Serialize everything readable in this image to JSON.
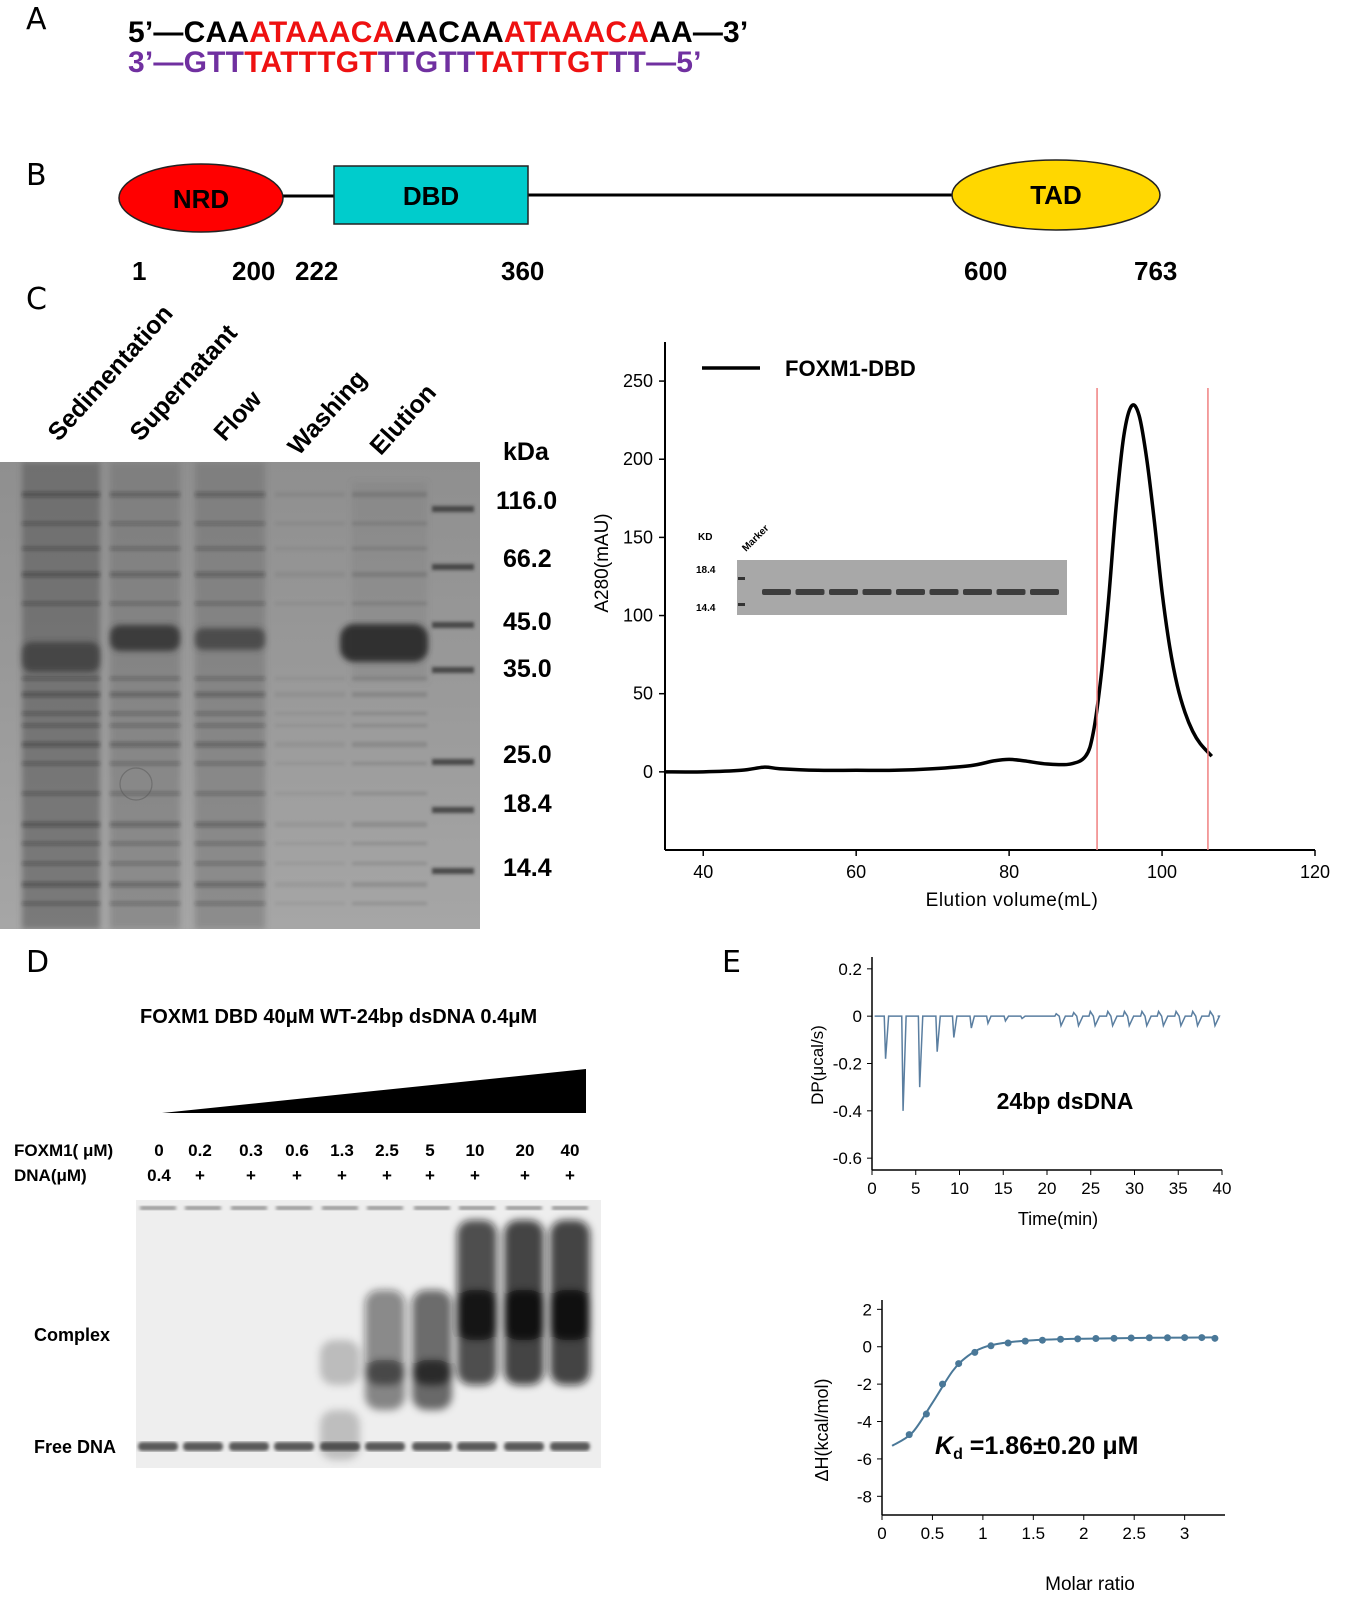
{
  "panels": {
    "a": "A",
    "b": "B",
    "c": "C",
    "d": "D",
    "e": "E"
  },
  "panel_a": {
    "top_strand": [
      {
        "t": "5’—",
        "c": "black"
      },
      {
        "t": "CAA",
        "c": "black"
      },
      {
        "t": "ATAAACA",
        "c": "red"
      },
      {
        "t": "AACAA",
        "c": "black"
      },
      {
        "t": "ATAAACA",
        "c": "red"
      },
      {
        "t": "AA",
        "c": "black"
      },
      {
        "t": "—3’",
        "c": "black"
      }
    ],
    "bottom_strand": [
      {
        "t": "3’—",
        "c": "purple"
      },
      {
        "t": "GTT",
        "c": "purple"
      },
      {
        "t": "TATTTGT",
        "c": "red"
      },
      {
        "t": "TTGTT",
        "c": "purple"
      },
      {
        "t": "TATTTGT",
        "c": "red"
      },
      {
        "t": "TT",
        "c": "purple"
      },
      {
        "t": "—5’",
        "c": "purple"
      }
    ]
  },
  "panel_b": {
    "domains": [
      {
        "label": "NRD",
        "color": "#ff0000"
      },
      {
        "label": "DBD",
        "color": "#00cccc"
      },
      {
        "label": "TAD",
        "color": "#ffd700"
      }
    ],
    "positions": [
      "1",
      "200",
      "222",
      "360",
      "600",
      "763"
    ]
  },
  "panel_c": {
    "lanes": [
      "Sedimentation",
      "Supernatant",
      "Flow",
      "Washing",
      "Elution"
    ],
    "kda_title": "kDa",
    "markers": [
      "116.0",
      "66.2",
      "45.0",
      "35.0",
      "25.0",
      "18.4",
      "14.4"
    ],
    "chart_data": {
      "type": "line",
      "legend": "FOXM1-DBD",
      "xlabel": "Elution volume(mL)",
      "ylabel": "A280(mAU)",
      "xlim": [
        35,
        120
      ],
      "ylim": [
        -50,
        275
      ],
      "x_ticks": [
        40,
        60,
        80,
        100,
        120
      ],
      "y_ticks": [
        0,
        50,
        100,
        150,
        200,
        250
      ],
      "vertical_lines": [
        91.5,
        106
      ],
      "x": [
        35,
        40,
        45,
        48,
        50,
        55,
        60,
        65,
        70,
        75,
        78,
        80,
        82,
        85,
        88,
        90,
        91,
        92,
        93,
        94,
        95,
        96,
        97,
        98,
        99,
        100,
        101,
        102,
        103,
        104,
        105,
        106.5
      ],
      "y": [
        0,
        0,
        1,
        3,
        2,
        1,
        1,
        1,
        2,
        4,
        7,
        8,
        7,
        5,
        5,
        10,
        25,
        60,
        110,
        170,
        215,
        234,
        228,
        200,
        160,
        115,
        80,
        55,
        38,
        26,
        18,
        10
      ],
      "inset": {
        "kd_label": "KD",
        "marker_label": "Marker",
        "bands": [
          "18.4",
          "14.4"
        ]
      }
    }
  },
  "panel_d": {
    "title": "FOXM1 DBD 40μM WT-24bp dsDNA 0.4μM",
    "foxm1_label": "FOXM1( μM)",
    "dna_label": "DNA(μM)",
    "foxm1_values": [
      "0",
      "0.2",
      "0.3",
      "0.6",
      "1.3",
      "2.5",
      "5",
      "10",
      "20",
      "40"
    ],
    "dna_values": [
      "0.4",
      "+",
      "+",
      "+",
      "+",
      "+",
      "+",
      "+",
      "+",
      "+"
    ],
    "complex_label": "Complex",
    "free_label": "Free DNA"
  },
  "panel_e": {
    "top": {
      "chart_data": {
        "type": "line",
        "title": "24bp dsDNA",
        "xlabel": "Time(min)",
        "ylabel": "DP(μcal/s)",
        "xlim": [
          0,
          40
        ],
        "ylim": [
          -0.65,
          0.25
        ],
        "x_ticks": [
          0,
          5,
          10,
          15,
          20,
          25,
          30,
          35,
          40
        ],
        "y_ticks": [
          0.2,
          0,
          -0.2,
          -0.4,
          -0.6
        ],
        "injection_times": [
          1.4,
          3.4,
          5.3,
          7.3,
          9.2,
          11.2,
          13.1,
          15.1,
          17.0,
          19.0,
          20.9,
          22.9,
          24.8,
          26.8,
          28.7,
          30.7,
          32.6,
          34.6,
          36.5,
          38.5
        ],
        "injection_peaks": [
          -0.18,
          -0.4,
          -0.3,
          -0.15,
          -0.09,
          -0.05,
          -0.03,
          -0.02,
          -0.01,
          0.0,
          0.01,
          0.015,
          0.02,
          0.02,
          0.02,
          0.02,
          0.02,
          0.02,
          0.02,
          0.02
        ]
      }
    },
    "bottom": {
      "chart_data": {
        "type": "scatter",
        "xlabel": "Molar ratio",
        "ylabel": "ΔH(kcal/mol)",
        "xlim": [
          0,
          3.4
        ],
        "ylim": [
          -9,
          2.5
        ],
        "x_ticks": [
          0,
          0.5,
          1,
          1.5,
          2,
          2.5,
          3
        ],
        "x_tick_labels": [
          "0",
          "0.5",
          "1",
          "1.5",
          "2",
          "2.5",
          "3"
        ],
        "y_ticks": [
          2,
          0,
          -2,
          -4,
          -6,
          -8
        ],
        "points_x": [
          0.27,
          0.44,
          0.6,
          0.76,
          0.92,
          1.08,
          1.25,
          1.42,
          1.59,
          1.77,
          1.94,
          2.12,
          2.3,
          2.47,
          2.65,
          2.83,
          3.0,
          3.17,
          3.3
        ],
        "points_y": [
          -4.7,
          -3.6,
          -2.0,
          -0.9,
          -0.3,
          0.05,
          0.2,
          0.3,
          0.35,
          0.4,
          0.42,
          0.44,
          0.45,
          0.47,
          0.48,
          0.48,
          0.49,
          0.49,
          0.45
        ],
        "fit_x": [
          0.1,
          0.3,
          0.5,
          0.7,
          0.85,
          1.0,
          1.2,
          1.5,
          2.0,
          2.5,
          3.0,
          3.3
        ],
        "fit_y": [
          -5.3,
          -4.6,
          -3.0,
          -1.3,
          -0.5,
          -0.05,
          0.2,
          0.35,
          0.43,
          0.47,
          0.49,
          0.5
        ],
        "kd_symbol": "K",
        "kd_sub": "d",
        "kd_text": " =1.86±0.20 μM"
      }
    }
  }
}
